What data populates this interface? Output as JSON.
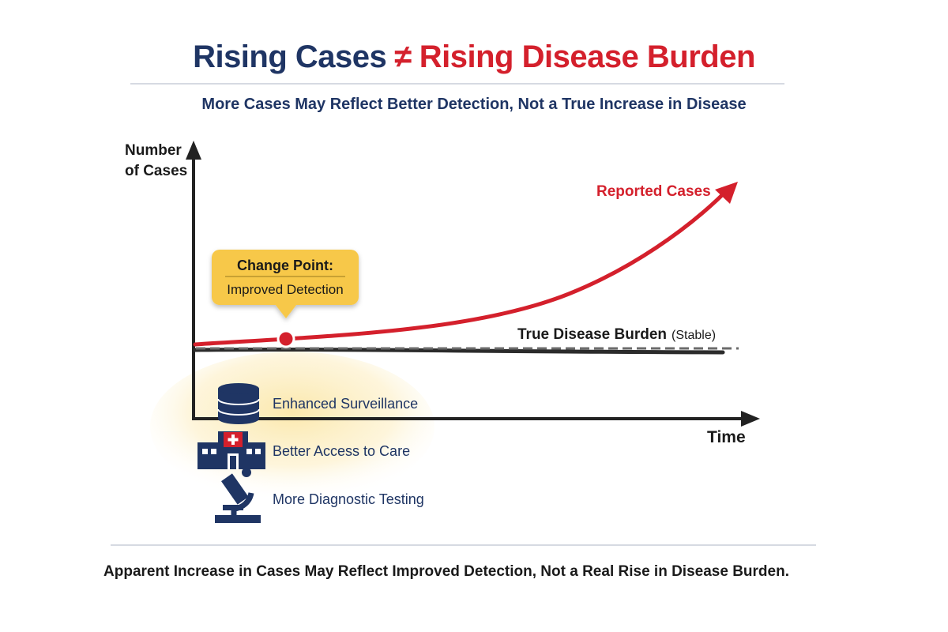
{
  "title": {
    "left": "Rising Cases",
    "symbol": "≠",
    "right": "Rising Disease Burden"
  },
  "subtitle": "More Cases May Reflect Better Detection, Not a True Increase in Disease",
  "axes": {
    "y_label_line1": "Number",
    "y_label_line2": "of Cases",
    "x_label": "Time"
  },
  "series": {
    "reported": "Reported Cases",
    "true_burden": "True Disease Burden",
    "true_burden_note": "(Stable)"
  },
  "callout": {
    "title": "Change Point:",
    "body": "Improved Detection"
  },
  "factors": [
    {
      "icon": "database-icon",
      "label": "Enhanced Surveillance"
    },
    {
      "icon": "hospital-icon",
      "label": "Better Access to Care"
    },
    {
      "icon": "microscope-icon",
      "label": "More Diagnostic Testing"
    }
  ],
  "footer": "Apparent Increase in Cases May Reflect Improved Detection, Not a Real Rise in Disease Burden.",
  "colors": {
    "navy": "#1f3564",
    "red": "#d4202c",
    "callout_bg": "#f7c84a",
    "dark_line": "#2b2b2b"
  }
}
